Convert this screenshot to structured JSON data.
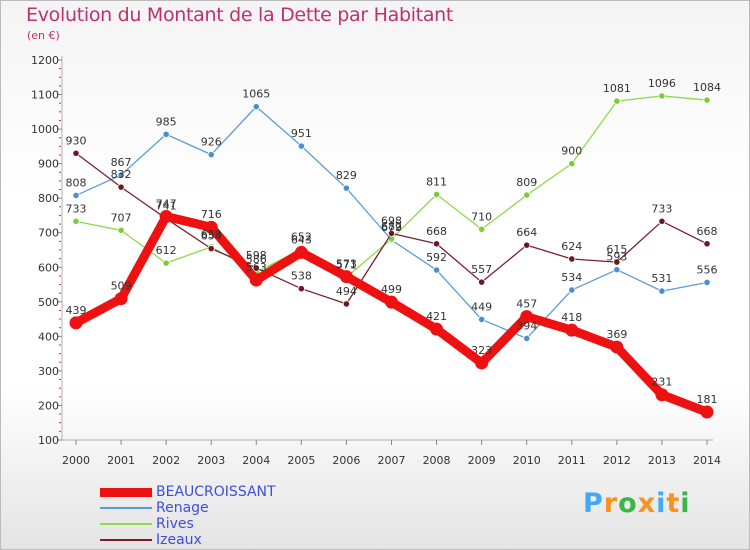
{
  "title": "Evolution du Montant de la Dette par Habitant",
  "unit_label": "(en €)",
  "brand": {
    "letters": [
      "P",
      "r",
      "o",
      "x",
      "i",
      "t",
      "i"
    ],
    "colors": [
      "#3fa9f5",
      "#f7931e",
      "#39b54a",
      "#f7931e",
      "#3fa9f5",
      "#f7931e",
      "#39b54a"
    ]
  },
  "chart_data": {
    "type": "line",
    "title": "Evolution du Montant de la Dette par Habitant",
    "ylabel": "(en €)",
    "xlabel": "",
    "x": [
      "2000",
      "2001",
      "2002",
      "2003",
      "2004",
      "2005",
      "2006",
      "2007",
      "2008",
      "2009",
      "2010",
      "2011",
      "2012",
      "2013",
      "2014"
    ],
    "ylim": [
      100,
      1200
    ],
    "yticks": [
      100,
      200,
      300,
      400,
      500,
      600,
      700,
      800,
      900,
      1000,
      1100,
      1200
    ],
    "grid": false,
    "legend_position": "bottom-left",
    "series": [
      {
        "name": "BEAUCROISSANT",
        "color": "#ee1111",
        "width": 9,
        "marker": "#ee1111",
        "values": [
          439,
          509,
          747,
          716,
          563,
          643,
          573,
          499,
          421,
          323,
          457,
          418,
          369,
          231,
          181
        ]
      },
      {
        "name": "Renage",
        "color": "#5b9bd5",
        "width": 1.3,
        "marker": "#4a8fd0",
        "values": [
          808,
          867,
          985,
          926,
          1065,
          951,
          829,
          679,
          592,
          449,
          394,
          534,
          593,
          531,
          556
        ]
      },
      {
        "name": "Rives",
        "color": "#8fd94b",
        "width": 1.3,
        "marker": "#7ccc38",
        "values": [
          733,
          707,
          612,
          659,
          586,
          652,
          571,
          682,
          811,
          710,
          809,
          900,
          1081,
          1096,
          1084
        ]
      },
      {
        "name": "Izeaux",
        "color": "#7a1f2b",
        "width": 1.3,
        "marker": "#6b1a24",
        "values": [
          930,
          832,
          741,
          654,
          598,
          538,
          494,
          698,
          668,
          557,
          664,
          624,
          615,
          733,
          668
        ]
      }
    ]
  }
}
